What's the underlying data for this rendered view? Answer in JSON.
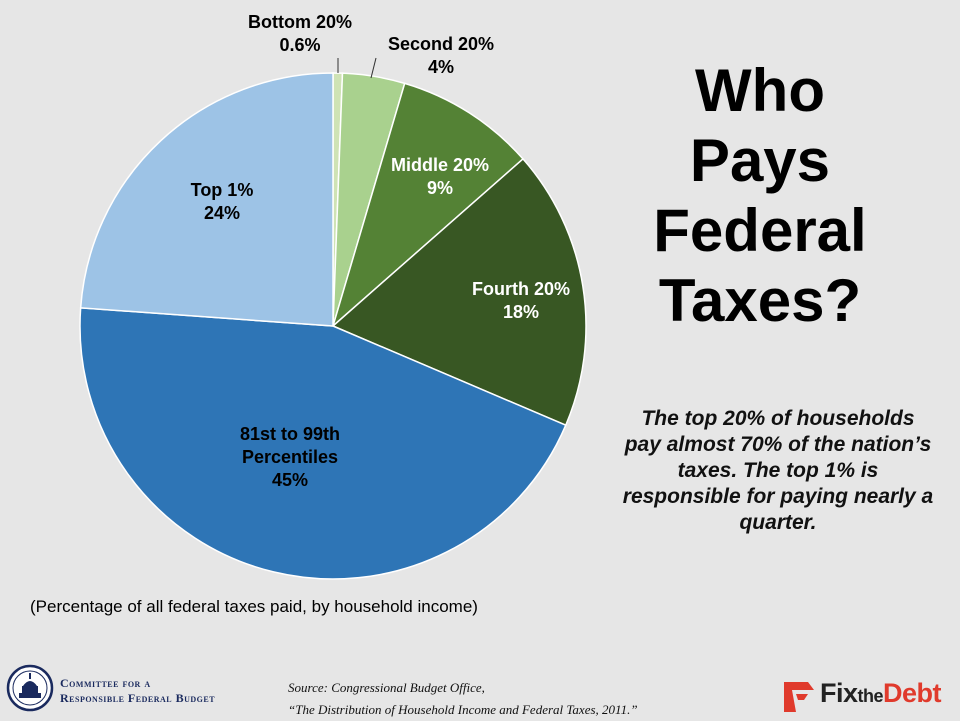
{
  "title_lines": [
    "Who",
    "Pays",
    "Federal",
    "Taxes?"
  ],
  "callout": "The top 20% of households pay almost 70% of the nation’s taxes. The top 1% is responsible for paying nearly a quarter.",
  "subtitle": "(Percentage of all federal taxes paid, by household income)",
  "source": {
    "line1": "Source: Congressional Budget Office,",
    "line2": "“The Distribution of Household Income and Federal Taxes, 2011.”"
  },
  "logos": {
    "crfb_line1": "Committee for a",
    "crfb_line2": "Responsible Federal Budget",
    "ftd_fix": "Fix",
    "ftd_the": "the",
    "ftd_debt": "Debt"
  },
  "chart_data": {
    "type": "pie",
    "start_angle_deg": 0,
    "direction": "clockwise",
    "slices": [
      {
        "name": "Bottom 20%",
        "value": 0.6,
        "label": "0.6%",
        "color": "#cfe3b5"
      },
      {
        "name": "Second 20%",
        "value": 4,
        "label": "4%",
        "color": "#a9d18e"
      },
      {
        "name": "Middle 20%",
        "value": 9,
        "label": "9%",
        "color": "#548235"
      },
      {
        "name": "Fourth 20%",
        "value": 18,
        "label": "18%",
        "color": "#385723"
      },
      {
        "name": "81st to 99th Percentiles",
        "value": 45,
        "label": "45%",
        "color": "#2e75b6"
      },
      {
        "name": "Top 1%",
        "value": 24,
        "label": "24%",
        "color": "#9dc3e6"
      }
    ]
  }
}
